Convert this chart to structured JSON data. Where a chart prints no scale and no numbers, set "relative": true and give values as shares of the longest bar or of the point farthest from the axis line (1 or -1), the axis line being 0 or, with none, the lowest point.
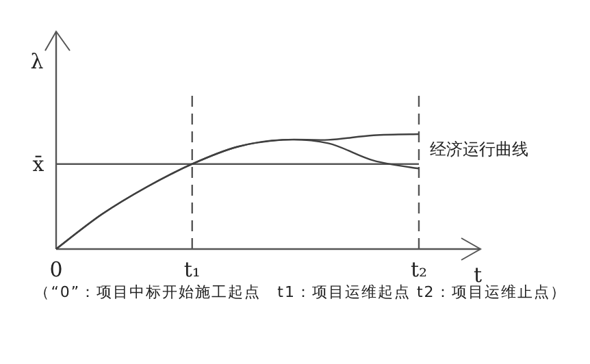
{
  "chart_data": {
    "type": "line",
    "relative": true,
    "xlabel": "t",
    "ylabel": "λ",
    "categories": [
      "0",
      null,
      null,
      "t₁",
      null,
      null,
      null,
      null,
      "t₂"
    ],
    "series": [
      {
        "color": "#404040",
        "values": [
          0,
          0.3,
          0.54,
          0.74,
          0.89,
          0.95,
          0.95,
          0.99,
          1
        ]
      },
      {
        "color": "#404040",
        "values": [
          0,
          0.3,
          0.54,
          0.74,
          0.89,
          0.95,
          0.92,
          0.77,
          0.7
        ]
      }
    ],
    "ref_lines": [
      {
        "axis": "y",
        "value": 0.74,
        "label": "x̄",
        "color": "#555555"
      },
      {
        "axis": "x",
        "value": "t₁",
        "color": "#555555",
        "line_style": "dashed"
      },
      {
        "axis": "x",
        "value": "t₂",
        "color": "#555555",
        "line_style": "dashed"
      }
    ],
    "annotations": [
      "经济运行曲线",
      "（“0”：项目中标开始施工起点　t1：项目运维起点 t2：项目运维止点）"
    ],
    "marker": "none",
    "line_style": "solid"
  }
}
